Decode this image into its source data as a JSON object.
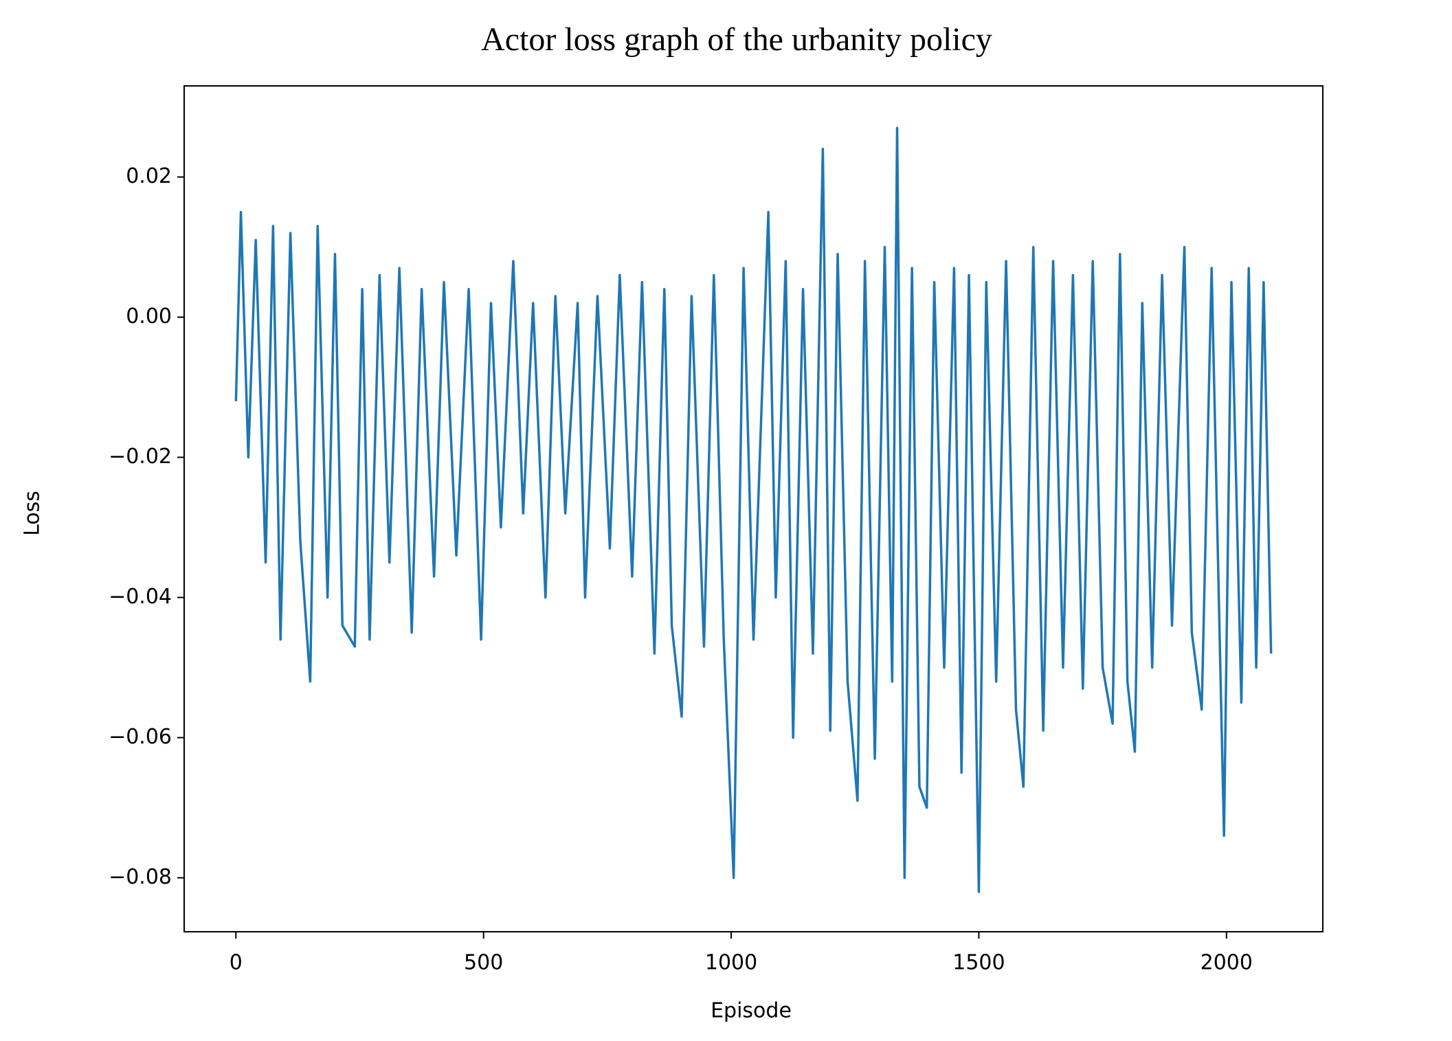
{
  "chart_data": {
    "type": "line",
    "title": "Actor loss graph of the urbanity policy",
    "x_label": "Episode",
    "y_label": "Loss",
    "xlim": [
      -104.5,
      2194.5
    ],
    "ylim": [
      -0.0877,
      0.033
    ],
    "xticks": [
      0,
      500,
      1000,
      1500,
      2000
    ],
    "yticks": [
      {
        "value": -0.08,
        "label": "−0.08"
      },
      {
        "value": -0.06,
        "label": "−0.06"
      },
      {
        "value": -0.04,
        "label": "−0.04"
      },
      {
        "value": -0.02,
        "label": "−0.02"
      },
      {
        "value": 0,
        "label": "0.00"
      },
      0.02
    ],
    "x": [
      0,
      10,
      25,
      40,
      60,
      75,
      90,
      110,
      130,
      150,
      165,
      185,
      200,
      215,
      240,
      255,
      270,
      290,
      310,
      330,
      355,
      375,
      400,
      420,
      445,
      470,
      495,
      515,
      535,
      560,
      580,
      600,
      625,
      645,
      665,
      690,
      705,
      730,
      755,
      775,
      800,
      820,
      845,
      865,
      880,
      900,
      920,
      945,
      965,
      985,
      1005,
      1025,
      1045,
      1075,
      1090,
      1110,
      1125,
      1145,
      1165,
      1185,
      1200,
      1215,
      1235,
      1255,
      1270,
      1290,
      1310,
      1325,
      1335,
      1350,
      1365,
      1380,
      1395,
      1410,
      1430,
      1450,
      1465,
      1480,
      1500,
      1515,
      1535,
      1555,
      1575,
      1590,
      1610,
      1630,
      1650,
      1670,
      1690,
      1710,
      1730,
      1750,
      1770,
      1785,
      1800,
      1815,
      1830,
      1850,
      1870,
      1890,
      1915,
      1930,
      1950,
      1970,
      1995,
      2010,
      2030,
      2045,
      2060,
      2075,
      2090
    ],
    "series": [
      {
        "name": "Loss",
        "color": "#1f77b4",
        "values": [
          -0.012,
          0.015,
          -0.02,
          0.011,
          -0.035,
          0.013,
          -0.046,
          0.012,
          -0.032,
          -0.052,
          0.013,
          -0.04,
          0.009,
          -0.044,
          -0.047,
          0.004,
          -0.046,
          0.006,
          -0.035,
          0.007,
          -0.045,
          0.004,
          -0.037,
          0.005,
          -0.034,
          0.004,
          -0.046,
          0.002,
          -0.03,
          0.008,
          -0.028,
          0.002,
          -0.04,
          0.003,
          -0.028,
          0.002,
          -0.04,
          0.003,
          -0.033,
          0.006,
          -0.037,
          0.005,
          -0.048,
          0.004,
          -0.044,
          -0.057,
          0.003,
          -0.047,
          0.006,
          -0.046,
          -0.08,
          0.007,
          -0.046,
          0.015,
          -0.04,
          0.008,
          -0.06,
          0.004,
          -0.048,
          0.024,
          -0.059,
          0.009,
          -0.052,
          -0.069,
          0.008,
          -0.063,
          0.01,
          -0.052,
          0.027,
          -0.08,
          0.007,
          -0.067,
          -0.07,
          0.005,
          -0.05,
          0.007,
          -0.065,
          0.006,
          -0.082,
          0.005,
          -0.052,
          0.008,
          -0.056,
          -0.067,
          0.01,
          -0.059,
          0.008,
          -0.05,
          0.006,
          -0.053,
          0.008,
          -0.05,
          -0.058,
          0.009,
          -0.052,
          -0.062,
          0.002,
          -0.05,
          0.006,
          -0.044,
          0.01,
          -0.045,
          -0.056,
          0.007,
          -0.074,
          0.005,
          -0.055,
          0.007,
          -0.05,
          0.005,
          -0.048
        ]
      }
    ]
  }
}
